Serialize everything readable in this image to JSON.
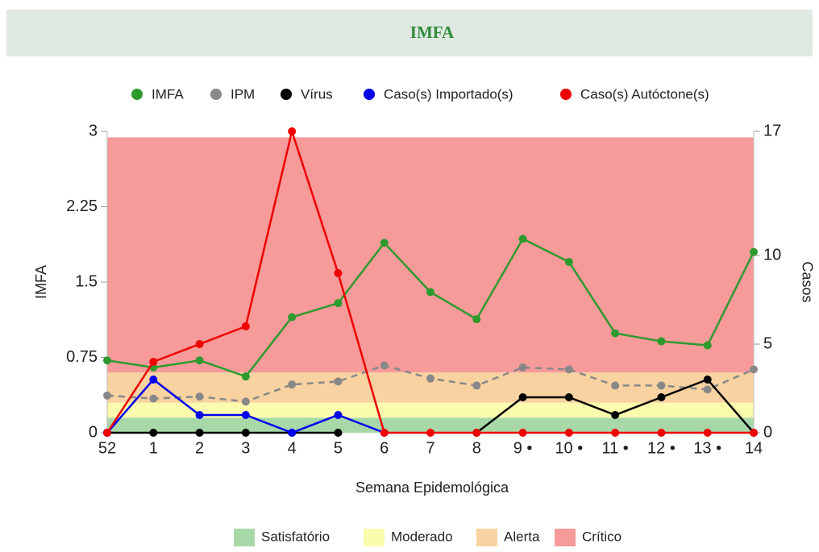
{
  "chart_data": {
    "type": "line",
    "title": "IMFA",
    "categories": [
      "52",
      "1",
      "2",
      "3",
      "4",
      "5",
      "6",
      "7",
      "8",
      "9 •",
      "10 •",
      "11 •",
      "12 •",
      "13 •",
      "14"
    ],
    "xlabel": "Semana Epidemológica",
    "ylabel": "IMFA",
    "y2label": "Casos",
    "ylim": [
      0,
      3
    ],
    "yticks": [
      0,
      0.75,
      1.5,
      2.25,
      3
    ],
    "y2lim": [
      0,
      17
    ],
    "y2ticks": [
      0,
      5,
      10,
      17
    ],
    "series": [
      {
        "name": "IMFA",
        "color": "#2e9a2e",
        "values": [
          0.72,
          0.65,
          0.72,
          0.56,
          1.15,
          1.29,
          1.89,
          1.4,
          1.13,
          1.93,
          1.7,
          0.99,
          0.91,
          0.87,
          1.8
        ]
      },
      {
        "name": "IPM",
        "color": "#888888",
        "dashed": true,
        "values": [
          0.37,
          0.34,
          0.36,
          0.31,
          0.48,
          0.51,
          0.67,
          0.54,
          0.47,
          0.65,
          0.63,
          0.47,
          0.47,
          0.43,
          0.63
        ]
      },
      {
        "name": "Vírus",
        "color": "#000000",
        "axis": "y2",
        "values": [
          0,
          0,
          0,
          0,
          0,
          0,
          null,
          null,
          0,
          2,
          2,
          1,
          2,
          3,
          0
        ]
      },
      {
        "name": "Caso(s) Importado(s)",
        "color": "#0000ee",
        "axis": "y2",
        "values": [
          0,
          3,
          1,
          1,
          0,
          1,
          0,
          null,
          null,
          null,
          null,
          null,
          null,
          null,
          null
        ]
      },
      {
        "name": "Caso(s) Autóctone(s)",
        "color": "#ee0000",
        "axis": "y2",
        "values": [
          0,
          4,
          5,
          6,
          17,
          9,
          0,
          0,
          0,
          0,
          0,
          0,
          0,
          0,
          0
        ]
      }
    ],
    "bands": [
      {
        "name": "Satisfatório",
        "color": "#a8d8a8",
        "from": 0,
        "to": 0.15
      },
      {
        "name": "Moderado",
        "color": "#fbfbae",
        "from": 0.15,
        "to": 0.3
      },
      {
        "name": "Alerta",
        "color": "#f8d2a0",
        "from": 0.3,
        "to": 0.6
      },
      {
        "name": "Crítico",
        "color": "#f79a9a",
        "from": 0.6,
        "to": 2.94
      }
    ]
  }
}
